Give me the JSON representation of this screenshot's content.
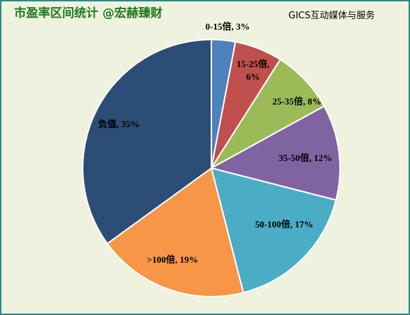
{
  "chart_data": {
    "type": "pie",
    "title": "市盈率区间统计 @宏赫臻财",
    "subtitle": "GICS互动媒体与服务",
    "labels": [
      "0-15倍, 3%",
      "15-25倍, 6%",
      "25-35倍, 8%",
      "35-50倍, 12%",
      "50-100倍, 17%",
      ">100倍, 19%",
      "负值, 35%"
    ],
    "values": [
      3,
      6,
      8,
      12,
      17,
      19,
      35
    ],
    "colors": [
      "#4f81bd",
      "#c0504d",
      "#9bbb59",
      "#8064a2",
      "#4bacc6",
      "#f79646",
      "#2c4d75"
    ]
  }
}
